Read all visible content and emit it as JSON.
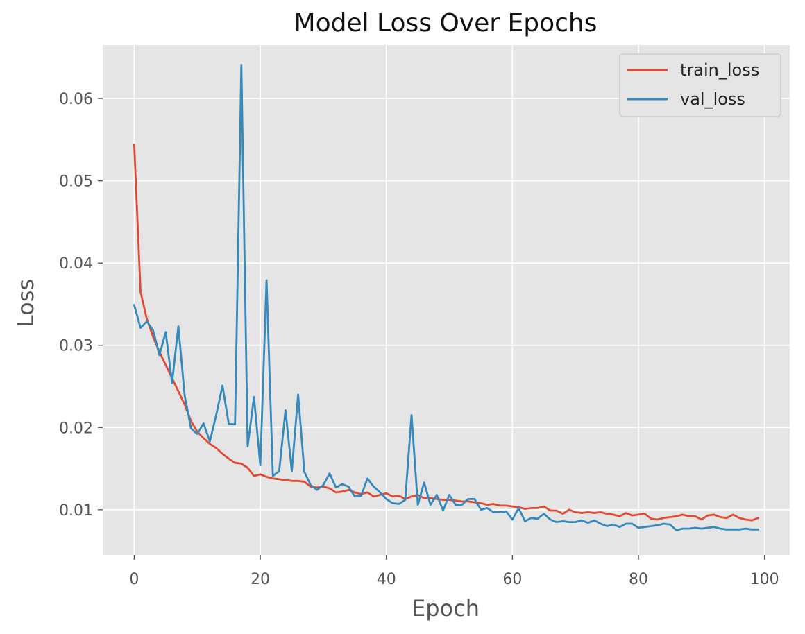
{
  "chart_data": {
    "type": "line",
    "title": "Model Loss Over Epochs",
    "xlabel": "Epoch",
    "ylabel": "Loss",
    "xlim": [
      -5,
      104
    ],
    "ylim": [
      0.0045,
      0.0665
    ],
    "xticks": [
      0,
      20,
      40,
      60,
      80,
      100
    ],
    "xtick_labels": [
      "0",
      "20",
      "40",
      "60",
      "80",
      "100"
    ],
    "yticks": [
      0.01,
      0.02,
      0.03,
      0.04,
      0.05,
      0.06
    ],
    "ytick_labels": [
      "0.01",
      "0.02",
      "0.03",
      "0.04",
      "0.05",
      "0.06"
    ],
    "grid": true,
    "legend_position": "top-right",
    "x": [
      0,
      1,
      2,
      3,
      4,
      5,
      6,
      7,
      8,
      9,
      10,
      11,
      12,
      13,
      14,
      15,
      16,
      17,
      18,
      19,
      20,
      21,
      22,
      23,
      24,
      25,
      26,
      27,
      28,
      29,
      30,
      31,
      32,
      33,
      34,
      35,
      36,
      37,
      38,
      39,
      40,
      41,
      42,
      43,
      44,
      45,
      46,
      47,
      48,
      49,
      50,
      51,
      52,
      53,
      54,
      55,
      56,
      57,
      58,
      59,
      60,
      61,
      62,
      63,
      64,
      65,
      66,
      67,
      68,
      69,
      70,
      71,
      72,
      73,
      74,
      75,
      76,
      77,
      78,
      79,
      80,
      81,
      82,
      83,
      84,
      85,
      86,
      87,
      88,
      89,
      90,
      91,
      92,
      93,
      94,
      95,
      96,
      97,
      98,
      99
    ],
    "series": [
      {
        "name": "train_loss",
        "color": "#E24A33",
        "values": [
          0.0544,
          0.0365,
          0.0332,
          0.031,
          0.0292,
          0.0276,
          0.026,
          0.0244,
          0.0228,
          0.0208,
          0.0195,
          0.0187,
          0.018,
          0.0175,
          0.0168,
          0.0162,
          0.0157,
          0.0156,
          0.0151,
          0.0141,
          0.0143,
          0.014,
          0.0138,
          0.0137,
          0.0136,
          0.0135,
          0.0135,
          0.0134,
          0.0128,
          0.0127,
          0.0128,
          0.0126,
          0.0121,
          0.0122,
          0.0124,
          0.0121,
          0.0119,
          0.0121,
          0.0116,
          0.0118,
          0.012,
          0.0116,
          0.0117,
          0.0113,
          0.0116,
          0.0118,
          0.0114,
          0.0114,
          0.0113,
          0.0112,
          0.0112,
          0.0111,
          0.011,
          0.011,
          0.0109,
          0.0108,
          0.0106,
          0.0107,
          0.0105,
          0.0105,
          0.0104,
          0.0103,
          0.0101,
          0.0102,
          0.0102,
          0.0104,
          0.0099,
          0.0099,
          0.0095,
          0.01,
          0.0097,
          0.0096,
          0.0097,
          0.0096,
          0.0097,
          0.0095,
          0.0094,
          0.0092,
          0.0096,
          0.0093,
          0.0094,
          0.0095,
          0.0089,
          0.0088,
          0.009,
          0.0091,
          0.0092,
          0.0094,
          0.0092,
          0.0092,
          0.0088,
          0.0093,
          0.0094,
          0.0091,
          0.009,
          0.0094,
          0.009,
          0.0088,
          0.0087,
          0.009
        ]
      },
      {
        "name": "val_loss",
        "color": "#348ABD",
        "values": [
          0.0349,
          0.0321,
          0.0329,
          0.0318,
          0.0288,
          0.0316,
          0.0254,
          0.0323,
          0.0239,
          0.0199,
          0.0192,
          0.0205,
          0.0183,
          0.0215,
          0.0251,
          0.0204,
          0.0204,
          0.0641,
          0.0177,
          0.0237,
          0.0154,
          0.0379,
          0.0141,
          0.0147,
          0.0221,
          0.0147,
          0.024,
          0.0146,
          0.013,
          0.0124,
          0.013,
          0.0144,
          0.0127,
          0.0131,
          0.0128,
          0.0116,
          0.0117,
          0.0138,
          0.0128,
          0.0121,
          0.0113,
          0.0108,
          0.0107,
          0.0112,
          0.0215,
          0.0106,
          0.0133,
          0.0106,
          0.0118,
          0.0099,
          0.0118,
          0.0106,
          0.0106,
          0.0113,
          0.0113,
          0.01,
          0.0102,
          0.0097,
          0.0097,
          0.0098,
          0.0088,
          0.0102,
          0.0086,
          0.009,
          0.0089,
          0.0095,
          0.0088,
          0.0085,
          0.0086,
          0.0085,
          0.0085,
          0.0087,
          0.0084,
          0.0087,
          0.0083,
          0.008,
          0.0082,
          0.0079,
          0.0083,
          0.0083,
          0.0078,
          0.0079,
          0.008,
          0.0081,
          0.0083,
          0.0082,
          0.0075,
          0.0077,
          0.0077,
          0.0078,
          0.0077,
          0.0078,
          0.0079,
          0.0077,
          0.0076,
          0.0076,
          0.0076,
          0.0077,
          0.0076,
          0.0076
        ]
      }
    ]
  }
}
